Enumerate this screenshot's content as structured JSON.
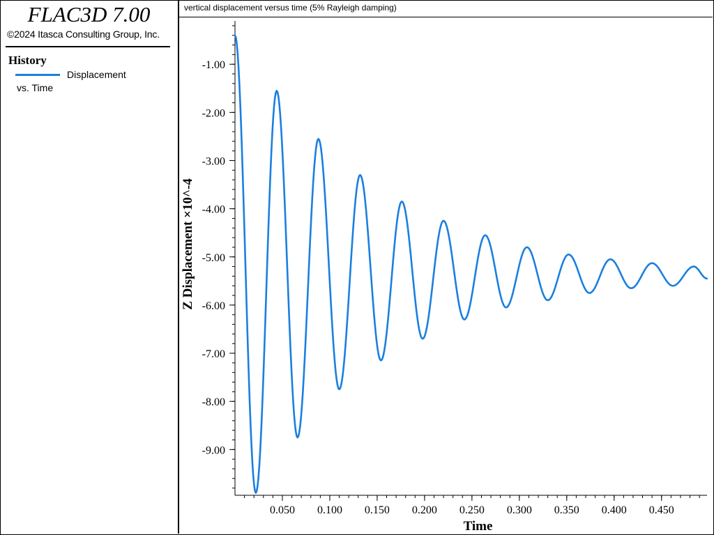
{
  "app": {
    "title": "FLAC3D 7.00",
    "copyright": "©2024 Itasca Consulting Group, Inc."
  },
  "sidebar": {
    "heading": "History",
    "legend": {
      "line1": "Displacement",
      "line2": "vs. Time",
      "color": "#1a7fe0"
    }
  },
  "plot": {
    "title": "vertical displacement versus time (5% Rayleigh damping)"
  },
  "chart_data": {
    "type": "line",
    "title": "vertical displacement versus time (5% Rayleigh damping)",
    "xlabel": "Time",
    "ylabel": "Z Displacement ×10^-4",
    "xlim": [
      0.0,
      0.498
    ],
    "ylim": [
      -9.95,
      -0.1
    ],
    "x_ticks": [
      0.05,
      0.1,
      0.15,
      0.2,
      0.25,
      0.3,
      0.35,
      0.4,
      0.45
    ],
    "x_tick_labels": [
      "0.050",
      "0.100",
      "0.150",
      "0.200",
      "0.250",
      "0.300",
      "0.350",
      "0.400",
      "0.450"
    ],
    "y_ticks": [
      -1,
      -2,
      -3,
      -4,
      -5,
      -6,
      -7,
      -8,
      -9
    ],
    "y_tick_labels": [
      "-1.00",
      "-2.00",
      "-3.00",
      "-4.00",
      "-5.00",
      "-6.00",
      "-7.00",
      "-8.00",
      "-9.00"
    ],
    "grid": false,
    "legend": "left panel",
    "series": [
      {
        "name": "Displacement vs. Time",
        "color": "#1a7fe0",
        "points": [
          [
            0.0,
            -0.4
          ],
          [
            0.022,
            -9.9
          ],
          [
            0.044,
            -1.55
          ],
          [
            0.066,
            -8.75
          ],
          [
            0.088,
            -2.55
          ],
          [
            0.11,
            -7.75
          ],
          [
            0.132,
            -3.3
          ],
          [
            0.154,
            -7.15
          ],
          [
            0.176,
            -3.85
          ],
          [
            0.198,
            -6.7
          ],
          [
            0.22,
            -4.25
          ],
          [
            0.242,
            -6.3
          ],
          [
            0.264,
            -4.55
          ],
          [
            0.286,
            -6.05
          ],
          [
            0.308,
            -4.8
          ],
          [
            0.33,
            -5.9
          ],
          [
            0.352,
            -4.95
          ],
          [
            0.374,
            -5.75
          ],
          [
            0.396,
            -5.05
          ],
          [
            0.418,
            -5.65
          ],
          [
            0.44,
            -5.13
          ],
          [
            0.462,
            -5.6
          ],
          [
            0.484,
            -5.2
          ],
          [
            0.498,
            -5.45
          ]
        ]
      }
    ]
  }
}
